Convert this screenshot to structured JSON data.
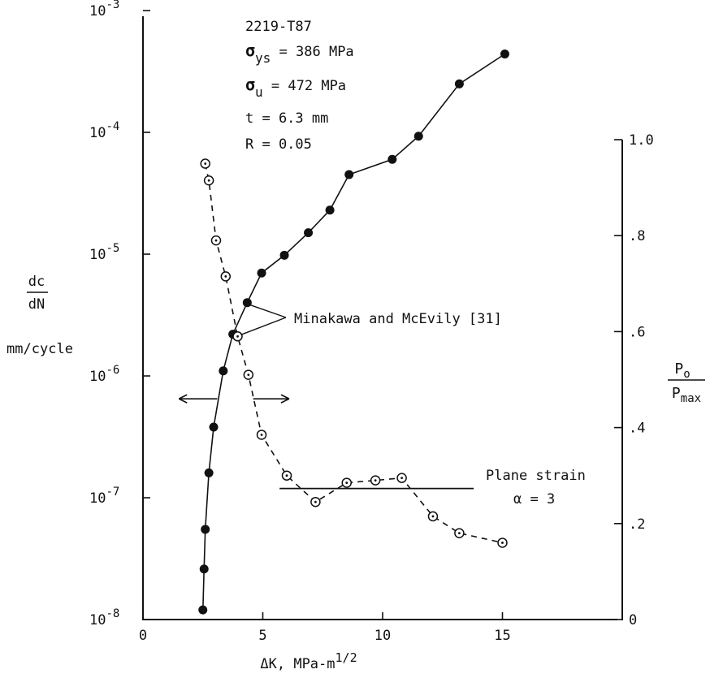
{
  "chart_data": {
    "type": "scatter",
    "xlabel": "ΔK, MPa-m",
    "xlabel_sup": "1/2",
    "xlim": [
      0,
      20
    ],
    "x_ticks": [
      0,
      5,
      10,
      15
    ],
    "x_tick_labels": [
      "0",
      "5",
      "10",
      "15"
    ],
    "y_left": {
      "label_num": "dc",
      "label_den": "dN",
      "unit": "mm/cycle",
      "scale": "log",
      "ylim": [
        1e-08,
        0.001
      ],
      "ticks": [
        1e-08,
        1e-07,
        1e-06,
        1e-05,
        0.0001,
        0.001
      ],
      "tick_base": "10",
      "tick_exponents": [
        "-8",
        "-7",
        "-6",
        "-5",
        "-4",
        "-3"
      ]
    },
    "y_right": {
      "label_num": "P",
      "label_num_sub": "o",
      "label_den": "P",
      "label_den_sub": "max",
      "scale": "linear",
      "ylim": [
        0,
        1.0
      ],
      "ticks": [
        0,
        0.2,
        0.4,
        0.6,
        0.8,
        1.0
      ],
      "tick_labels": [
        "0",
        ".2",
        ".4",
        ".6",
        ".8",
        "1.0"
      ]
    },
    "series": [
      {
        "axis": "left",
        "marker": "filled-circle",
        "line": "solid",
        "x": [
          2.5,
          2.55,
          2.6,
          2.75,
          2.95,
          3.35,
          3.75,
          4.35,
          4.95,
          5.9,
          6.9,
          7.8,
          8.6,
          10.4,
          11.5,
          13.2,
          15.1
        ],
        "y": [
          1.2e-08,
          2.6e-08,
          5.5e-08,
          1.6e-07,
          3.8e-07,
          1.1e-06,
          2.2e-06,
          4e-06,
          7e-06,
          9.8e-06,
          1.5e-05,
          2.3e-05,
          4.5e-05,
          6e-05,
          9.3e-05,
          0.00025,
          0.00044
        ]
      },
      {
        "axis": "right",
        "marker": "dotted-open-circle",
        "line": "dashed",
        "x": [
          2.6,
          2.75,
          3.05,
          3.45,
          3.95,
          4.4,
          4.95,
          6.0,
          7.2,
          8.5,
          9.7,
          10.8,
          12.1,
          13.2,
          15.0
        ],
        "y": [
          0.95,
          0.915,
          0.79,
          0.715,
          0.59,
          0.51,
          0.385,
          0.3,
          0.245,
          0.285,
          0.29,
          0.295,
          0.215,
          0.18,
          0.16
        ]
      }
    ],
    "reference_line": {
      "axis": "right",
      "x": [
        5.7,
        13.8
      ],
      "y": 0.273
    },
    "arrows": {
      "axis": "right",
      "y": 0.46,
      "left": [
        1.5,
        3.1
      ],
      "right": [
        4.6,
        6.1
      ]
    },
    "callout_points": [
      [
        4.35,
        4e-06
      ],
      [
        3.95,
        0.59
      ]
    ],
    "annotations": {
      "material": {
        "alloy": "2219-T87",
        "sigma": "σ",
        "sub_ys": "ys",
        "val_ys": " = 386 MPa",
        "sub_u": "u",
        "val_u": "  = 472 MPa",
        "thickness": "t = 6.3 mm",
        "ratio": "R = 0.05"
      },
      "callout": "Minakawa and McEvily [31]",
      "plane_strain": "Plane strain",
      "alpha": "α = 3"
    }
  }
}
